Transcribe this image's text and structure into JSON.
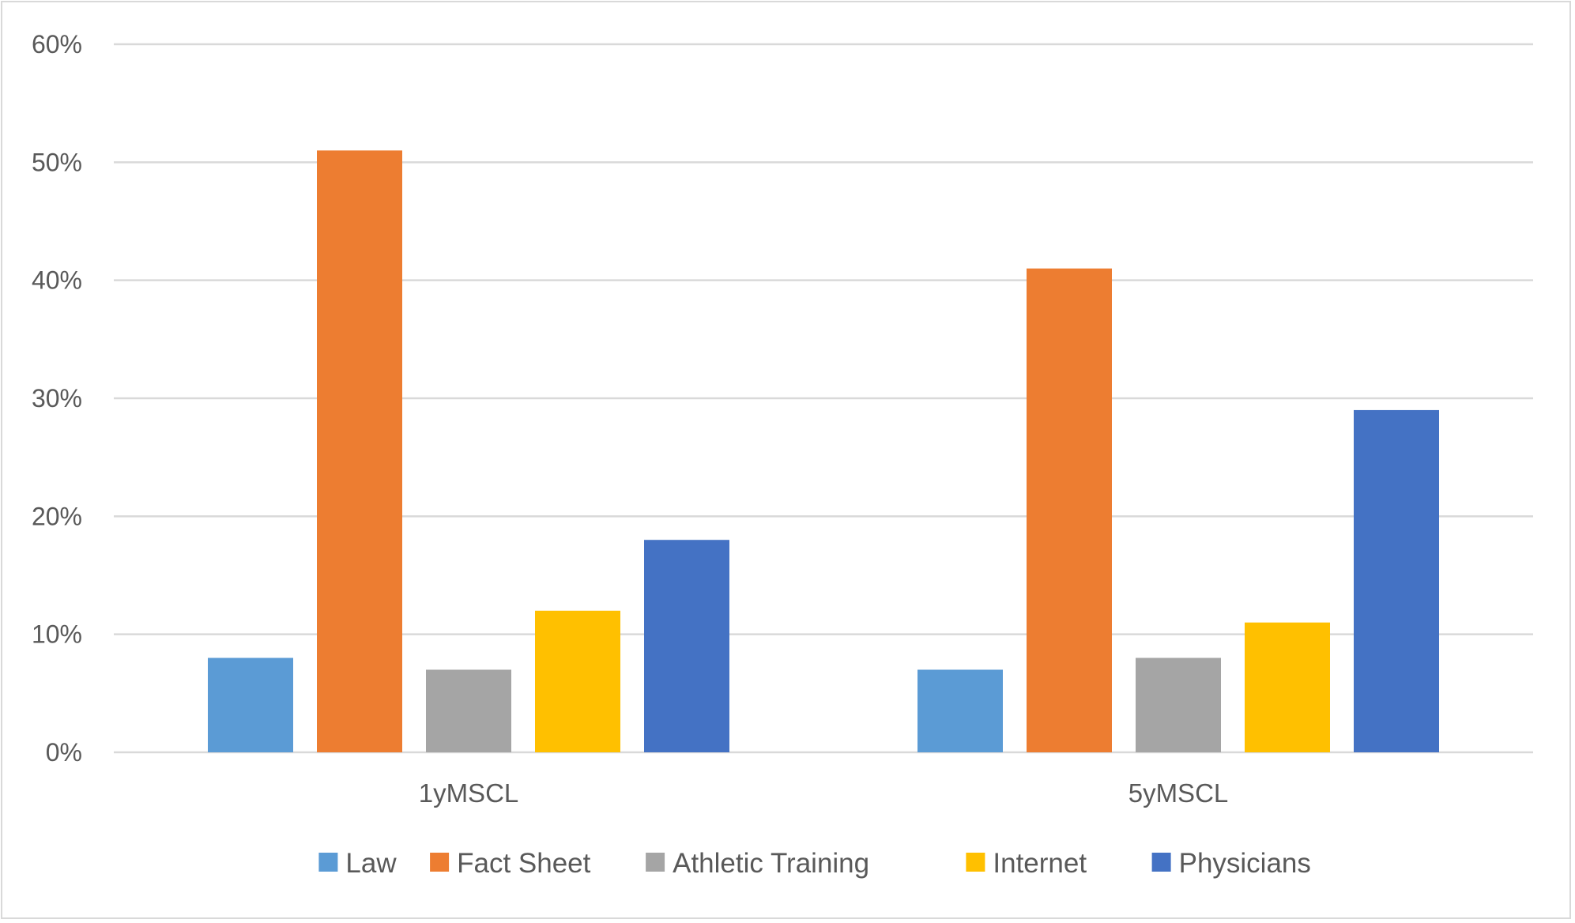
{
  "chart_data": {
    "type": "bar",
    "title": "",
    "xlabel": "",
    "ylabel": "",
    "categories": [
      "1yMSCL",
      "5yMSCL"
    ],
    "series": [
      {
        "name": "Law",
        "color": "#5b9bd5",
        "values": [
          8,
          7
        ]
      },
      {
        "name": "Fact Sheet",
        "color": "#ed7d31",
        "values": [
          51,
          41
        ]
      },
      {
        "name": "Athletic Training",
        "color": "#a5a5a5",
        "values": [
          7,
          8
        ]
      },
      {
        "name": "Internet",
        "color": "#ffc000",
        "values": [
          12,
          11
        ]
      },
      {
        "name": "Physicians",
        "color": "#4472c4",
        "values": [
          18,
          29
        ]
      }
    ],
    "ylim": [
      0,
      60
    ],
    "yticks": [
      0,
      10,
      20,
      30,
      40,
      50,
      60
    ],
    "ytick_labels": [
      "0%",
      "10%",
      "20%",
      "30%",
      "40%",
      "50%",
      "60%"
    ],
    "grid": true,
    "legend_position": "bottom"
  }
}
